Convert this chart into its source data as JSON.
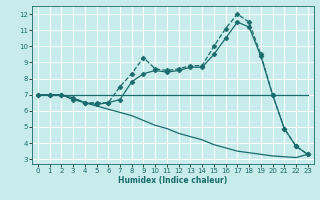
{
  "xlabel": "Humidex (Indice chaleur)",
  "xlim": [
    -0.5,
    23.5
  ],
  "ylim": [
    2.7,
    12.5
  ],
  "yticks": [
    3,
    4,
    5,
    6,
    7,
    8,
    9,
    10,
    11,
    12
  ],
  "xticks": [
    0,
    1,
    2,
    3,
    4,
    5,
    6,
    7,
    8,
    9,
    10,
    11,
    12,
    13,
    14,
    15,
    16,
    17,
    18,
    19,
    20,
    21,
    22,
    23
  ],
  "bg_color": "#c8ecec",
  "grid_color": "#ffffff",
  "line_color": "#1a6b6b",
  "lines": [
    {
      "x": [
        0,
        1,
        2,
        3,
        4,
        5,
        6,
        7,
        8,
        9,
        10,
        11,
        12,
        13,
        14,
        15,
        16,
        17,
        18,
        19,
        20,
        21,
        22,
        23
      ],
      "y": [
        7,
        7,
        7,
        6.8,
        6.5,
        6.5,
        6.5,
        7.5,
        8.3,
        9.3,
        8.6,
        8.5,
        8.6,
        8.8,
        8.8,
        10.0,
        11.1,
        12.0,
        11.5,
        9.5,
        7.0,
        4.9,
        3.8,
        3.3
      ],
      "marker": "D",
      "markersize": 2.5,
      "linestyle": "--",
      "linewidth": 0.9
    },
    {
      "x": [
        0,
        1,
        2,
        3,
        4,
        5,
        6,
        7,
        8,
        9,
        10,
        11,
        12,
        13,
        14,
        15,
        16,
        17,
        18,
        19,
        20,
        21,
        22,
        23
      ],
      "y": [
        7,
        7,
        7,
        6.7,
        6.5,
        6.4,
        6.5,
        6.7,
        7.8,
        8.3,
        8.5,
        8.4,
        8.5,
        8.7,
        8.7,
        9.5,
        10.5,
        11.5,
        11.2,
        9.4,
        7.0,
        4.9,
        3.8,
        3.3
      ],
      "marker": "D",
      "markersize": 2.5,
      "linestyle": "-",
      "linewidth": 0.9
    },
    {
      "x": [
        0,
        1,
        2,
        3,
        4,
        5,
        6,
        7,
        8,
        9,
        10,
        11,
        12,
        13,
        14,
        15,
        16,
        17,
        18,
        19,
        20,
        21,
        22,
        23
      ],
      "y": [
        7,
        7,
        7,
        7,
        7,
        7,
        7,
        7,
        7,
        7,
        7,
        7,
        7,
        7,
        7,
        7,
        7,
        7,
        7,
        7,
        7,
        7,
        7,
        7
      ],
      "marker": null,
      "markersize": 0,
      "linestyle": "-",
      "linewidth": 0.9
    },
    {
      "x": [
        0,
        1,
        2,
        3,
        4,
        5,
        6,
        7,
        8,
        9,
        10,
        11,
        12,
        13,
        14,
        15,
        16,
        17,
        18,
        19,
        20,
        21,
        22,
        23
      ],
      "y": [
        7,
        7,
        7,
        6.8,
        6.5,
        6.3,
        6.1,
        5.9,
        5.7,
        5.4,
        5.1,
        4.9,
        4.6,
        4.4,
        4.2,
        3.9,
        3.7,
        3.5,
        3.4,
        3.3,
        3.2,
        3.15,
        3.1,
        3.3
      ],
      "marker": null,
      "markersize": 0,
      "linestyle": "-",
      "linewidth": 0.9
    }
  ]
}
